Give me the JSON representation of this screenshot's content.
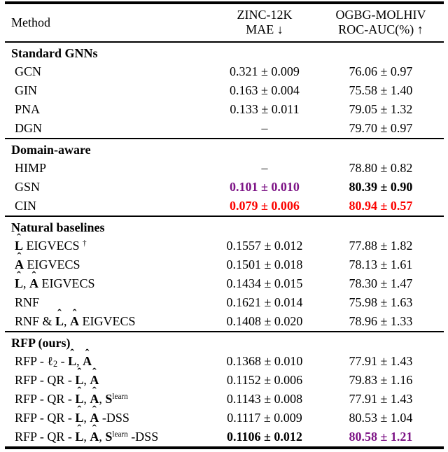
{
  "colors": {
    "red": "#fb0300",
    "purple": "#7d1486",
    "text": "#000000",
    "rule": "#000000",
    "background": "#ffffff"
  },
  "table": {
    "header": {
      "method_label": "Method",
      "col2": [
        "ZINC-12K",
        "MAE ↓"
      ],
      "col3": [
        "OGBG-MOLHIV",
        "ROC-AUC(%) ↑"
      ]
    },
    "sections": [
      {
        "title": "Standard GNNs",
        "rows": [
          {
            "method": "GCN",
            "zinc": {
              "t": "0.321 ± 0.009",
              "s": "plain"
            },
            "molhiv": {
              "t": "76.06 ± 0.97",
              "s": "plain"
            }
          },
          {
            "method": "GIN",
            "zinc": {
              "t": "0.163 ± 0.004",
              "s": "plain"
            },
            "molhiv": {
              "t": "75.58 ± 1.40",
              "s": "plain"
            }
          },
          {
            "method": "PNA",
            "zinc": {
              "t": "0.133 ± 0.011",
              "s": "plain"
            },
            "molhiv": {
              "t": "79.05 ± 1.32",
              "s": "plain"
            }
          },
          {
            "method": "DGN",
            "zinc": {
              "t": "–",
              "s": "plain"
            },
            "molhiv": {
              "t": "79.70 ± 0.97",
              "s": "plain"
            }
          }
        ]
      },
      {
        "title": "Domain-aware",
        "rows": [
          {
            "method": "HIMP",
            "zinc": {
              "t": "–",
              "s": "plain"
            },
            "molhiv": {
              "t": "78.80 ± 0.82",
              "s": "plain"
            }
          },
          {
            "method": "GSN",
            "zinc": {
              "t": "0.101 ± 0.010",
              "s": "bold_purple"
            },
            "molhiv": {
              "t": "80.39 ± 0.90",
              "s": "bold"
            }
          },
          {
            "method": "CIN",
            "zinc": {
              "t": "0.079 ± 0.006",
              "s": "bold_red"
            },
            "molhiv": {
              "t": "80.94 ± 0.57",
              "s": "bold_red"
            }
          }
        ]
      },
      {
        "title": "Natural baselines",
        "rows": [
          {
            "method": "**@{L}** EIGVECS ^{†}",
            "zinc": {
              "t": "0.1557 ± 0.012",
              "s": "plain"
            },
            "molhiv": {
              "t": "77.88 ± 1.82",
              "s": "plain"
            }
          },
          {
            "method": "**@{A}** EIGVECS",
            "zinc": {
              "t": "0.1501 ± 0.018",
              "s": "plain"
            },
            "molhiv": {
              "t": "78.13 ± 1.61",
              "s": "plain"
            }
          },
          {
            "method": "**@{L}**, **@{A}** EIGVECS",
            "zinc": {
              "t": "0.1434 ± 0.015",
              "s": "plain"
            },
            "molhiv": {
              "t": "78.30 ± 1.47",
              "s": "plain"
            }
          },
          {
            "method": "RNF",
            "zinc": {
              "t": "0.1621 ± 0.014",
              "s": "plain"
            },
            "molhiv": {
              "t": "75.98 ± 1.63",
              "s": "plain"
            }
          },
          {
            "method": "RNF & **@{L}**, **@{A}** EIGVECS",
            "zinc": {
              "t": "0.1408 ± 0.020",
              "s": "plain"
            },
            "molhiv": {
              "t": "78.96 ± 1.33",
              "s": "plain"
            }
          }
        ]
      },
      {
        "title": "RFP (ours)",
        "rows": [
          {
            "method": "RFP - ℓ_{2} - **@{L}**, **@{A}**",
            "zinc": {
              "t": "0.1368 ± 0.010",
              "s": "plain"
            },
            "molhiv": {
              "t": "77.91 ± 1.43",
              "s": "plain"
            }
          },
          {
            "method": "RFP - QR - **@{L}**, **@{A}**",
            "zinc": {
              "t": "0.1152 ± 0.006",
              "s": "plain"
            },
            "molhiv": {
              "t": "79.83 ± 1.16",
              "s": "plain"
            }
          },
          {
            "method": "RFP - QR - **@{L}**, **@{A}**, **S**^{learn}",
            "zinc": {
              "t": "0.1143 ± 0.008",
              "s": "plain"
            },
            "molhiv": {
              "t": "77.91 ± 1.43",
              "s": "plain"
            }
          },
          {
            "method": "RFP - QR - **@{L}**, **@{A}** -DSS",
            "zinc": {
              "t": "0.1117 ± 0.009",
              "s": "plain"
            },
            "molhiv": {
              "t": "80.53 ± 1.04",
              "s": "plain"
            }
          },
          {
            "method": "RFP - QR - **@{L}**, **@{A}**, **S**^{learn} -DSS",
            "zinc": {
              "t": "0.1106 ± 0.012",
              "s": "bold"
            },
            "molhiv": {
              "t": "80.58 ± 1.21",
              "s": "bold_purple"
            }
          }
        ]
      }
    ]
  }
}
